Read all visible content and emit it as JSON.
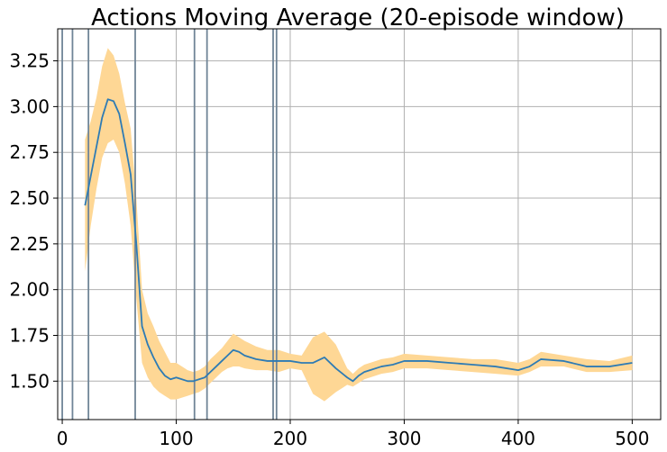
{
  "chart_data": {
    "type": "line",
    "title": "Actions Moving Average (20-episode window)",
    "xlabel": "",
    "ylabel": "",
    "xlim": [
      -4,
      525
    ],
    "ylim": [
      1.29,
      3.425
    ],
    "grid": true,
    "x_ticks": [
      0,
      100,
      200,
      300,
      400,
      500
    ],
    "y_ticks": [
      1.5,
      1.75,
      2.0,
      2.25,
      2.5,
      2.75,
      3.0,
      3.25
    ],
    "y_tick_labels": [
      "1.50",
      "1.75",
      "2.00",
      "2.25",
      "2.50",
      "2.75",
      "3.00",
      "3.25"
    ],
    "vertical_lines": [
      0,
      9,
      23,
      64,
      116,
      127,
      185,
      188
    ],
    "colors": {
      "line": "#2e7bb4",
      "band": "#fed795",
      "vline": "#708597",
      "grid": "#b0b0b0"
    },
    "series": [
      {
        "x": [
          20,
          25,
          30,
          35,
          40,
          45,
          50,
          55,
          60,
          65,
          70,
          75,
          80,
          85,
          90,
          95,
          100,
          105,
          110,
          115,
          120,
          125,
          130,
          135,
          140,
          145,
          150,
          155,
          160,
          170,
          180,
          190,
          200,
          210,
          220,
          230,
          240,
          250,
          255,
          260,
          265,
          270,
          280,
          290,
          300,
          320,
          340,
          360,
          380,
          400,
          410,
          420,
          440,
          460,
          480,
          500
        ],
        "y": [
          2.46,
          2.62,
          2.78,
          2.94,
          3.04,
          3.03,
          2.96,
          2.8,
          2.63,
          2.25,
          1.8,
          1.7,
          1.63,
          1.57,
          1.53,
          1.51,
          1.52,
          1.51,
          1.5,
          1.5,
          1.51,
          1.52,
          1.55,
          1.58,
          1.61,
          1.64,
          1.67,
          1.66,
          1.64,
          1.62,
          1.61,
          1.61,
          1.61,
          1.6,
          1.6,
          1.63,
          1.57,
          1.52,
          1.5,
          1.53,
          1.55,
          1.56,
          1.58,
          1.59,
          1.61,
          1.61,
          1.6,
          1.59,
          1.58,
          1.56,
          1.58,
          1.62,
          1.61,
          1.58,
          1.58,
          1.6
        ]
      }
    ],
    "band": {
      "x": [
        20,
        25,
        30,
        35,
        40,
        45,
        50,
        55,
        60,
        65,
        70,
        75,
        80,
        85,
        90,
        95,
        100,
        105,
        110,
        115,
        120,
        125,
        130,
        135,
        140,
        145,
        150,
        155,
        160,
        170,
        180,
        190,
        200,
        210,
        220,
        230,
        240,
        250,
        255,
        260,
        265,
        270,
        280,
        290,
        300,
        320,
        340,
        360,
        380,
        400,
        410,
        420,
        440,
        460,
        480,
        500
      ],
      "lower": [
        2.1,
        2.35,
        2.55,
        2.72,
        2.8,
        2.82,
        2.75,
        2.58,
        2.35,
        1.95,
        1.6,
        1.52,
        1.47,
        1.44,
        1.42,
        1.4,
        1.4,
        1.41,
        1.42,
        1.43,
        1.44,
        1.46,
        1.49,
        1.52,
        1.55,
        1.57,
        1.58,
        1.58,
        1.57,
        1.56,
        1.56,
        1.55,
        1.57,
        1.56,
        1.43,
        1.39,
        1.44,
        1.48,
        1.47,
        1.49,
        1.51,
        1.52,
        1.54,
        1.55,
        1.57,
        1.57,
        1.56,
        1.55,
        1.54,
        1.53,
        1.55,
        1.58,
        1.58,
        1.55,
        1.55,
        1.56
      ],
      "upper": [
        2.82,
        2.92,
        3.05,
        3.22,
        3.32,
        3.28,
        3.18,
        3.02,
        2.88,
        2.5,
        2.0,
        1.87,
        1.8,
        1.72,
        1.66,
        1.6,
        1.6,
        1.58,
        1.56,
        1.55,
        1.56,
        1.58,
        1.62,
        1.65,
        1.68,
        1.72,
        1.76,
        1.74,
        1.72,
        1.69,
        1.67,
        1.67,
        1.65,
        1.64,
        1.74,
        1.77,
        1.7,
        1.57,
        1.54,
        1.57,
        1.59,
        1.6,
        1.62,
        1.63,
        1.65,
        1.64,
        1.63,
        1.62,
        1.62,
        1.6,
        1.62,
        1.66,
        1.64,
        1.62,
        1.61,
        1.64
      ]
    }
  }
}
